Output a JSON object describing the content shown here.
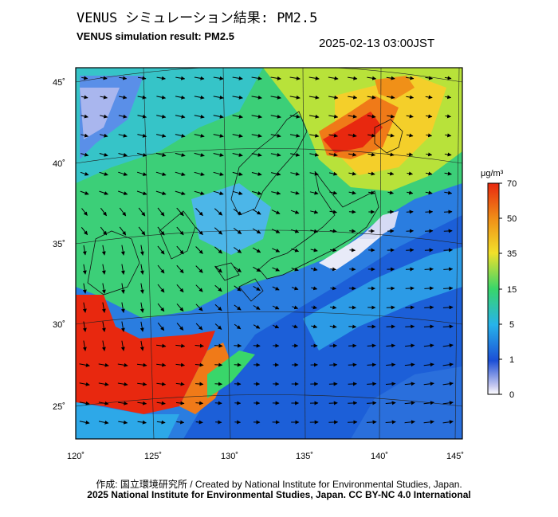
{
  "title_jp": "VENUS シミュレーション結果: PM2.5",
  "title_en": "VENUS simulation result: PM2.5",
  "timestamp": "2025-02-13 03:00JST",
  "map": {
    "lon_labels": [
      "120˚",
      "125˚",
      "130˚",
      "135˚",
      "140˚",
      "145˚"
    ],
    "lat_labels": [
      "25˚",
      "30˚",
      "35˚",
      "40˚",
      "45˚"
    ]
  },
  "colorbar": {
    "unit": "μg/m³",
    "tick_labels": [
      "70",
      "50",
      "35",
      "15",
      "5",
      "1",
      "0"
    ],
    "colors": [
      "#ffffff",
      "#1c4fd6",
      "#27b3ea",
      "#39d66a",
      "#f2e02a",
      "#f09018",
      "#e8280f"
    ]
  },
  "credit_line1": "作成: 国立環境研究所 / Created by National Institute for Environmental Studies, Japan.",
  "credit_line2": "2025 National Institute for Environmental Studies, Japan. CC BY-NC 4.0 International"
}
